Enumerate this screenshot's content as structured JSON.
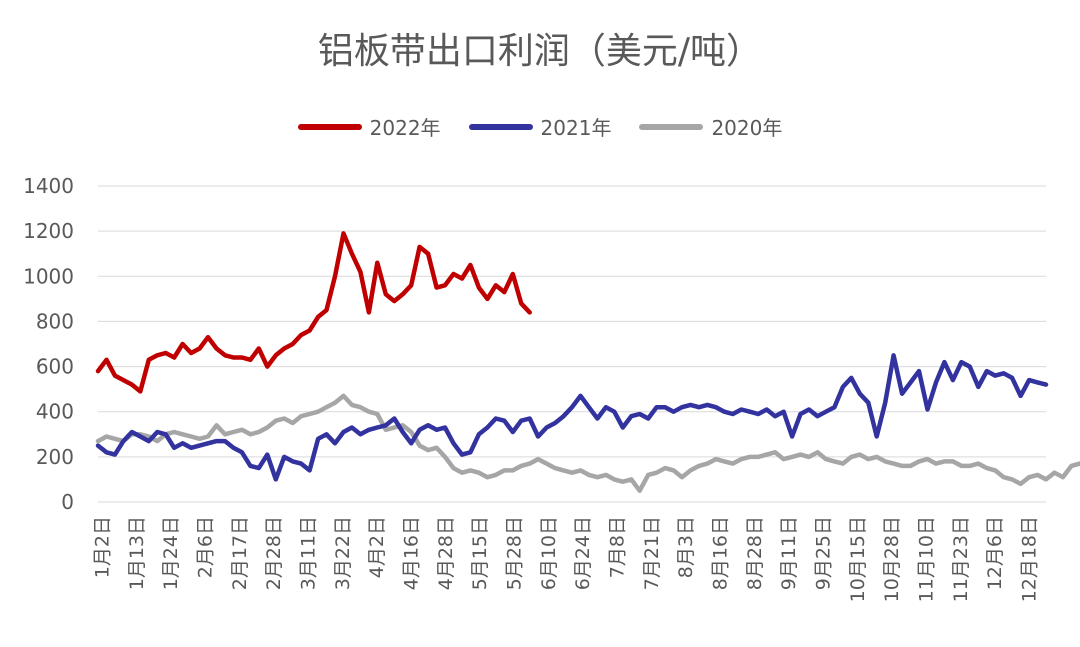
{
  "chart_data": {
    "type": "line",
    "title": "铝板带出口利润（美元/吨）",
    "xlabel": "",
    "ylabel": "",
    "ylim": [
      0,
      1400
    ],
    "yticks": [
      0,
      200,
      400,
      600,
      800,
      1000,
      1200,
      1400
    ],
    "grid": true,
    "legend_position": "top",
    "x_tick_labels": [
      "1月2日",
      "1月13日",
      "1月24日",
      "2月6日",
      "2月17日",
      "2月28日",
      "3月11日",
      "3月22日",
      "4月2日",
      "4月16日",
      "4月28日",
      "5月15日",
      "5月28日",
      "6月10日",
      "6月24日",
      "7月8日",
      "7月21日",
      "8月3日",
      "8月16日",
      "8月28日",
      "9月11日",
      "9月25日",
      "10月15日",
      "10月28日",
      "11月10日",
      "11月23日",
      "12月6日",
      "12月18日"
    ],
    "series": [
      {
        "name": "2022年",
        "color": "#c00000",
        "values": [
          580,
          630,
          560,
          540,
          520,
          490,
          630,
          650,
          660,
          640,
          700,
          660,
          680,
          730,
          680,
          650,
          640,
          640,
          630,
          680,
          600,
          650,
          680,
          700,
          740,
          760,
          820,
          850,
          1000,
          1190,
          1100,
          1020,
          840,
          1060,
          920,
          890,
          920,
          960,
          1130,
          1100,
          950,
          960,
          1010,
          990,
          1050,
          950,
          900,
          960,
          930,
          1010,
          880,
          840
        ]
      },
      {
        "name": "2021年",
        "color": "#3333a0",
        "values": [
          250,
          220,
          210,
          270,
          310,
          290,
          270,
          310,
          300,
          240,
          260,
          240,
          250,
          260,
          270,
          270,
          240,
          220,
          160,
          150,
          210,
          100,
          200,
          180,
          170,
          140,
          280,
          300,
          260,
          310,
          330,
          300,
          320,
          330,
          340,
          370,
          310,
          260,
          320,
          340,
          320,
          330,
          260,
          210,
          220,
          300,
          330,
          370,
          360,
          310,
          360,
          370,
          290,
          330,
          350,
          380,
          420,
          470,
          420,
          370,
          420,
          400,
          330,
          380,
          390,
          370,
          420,
          420,
          400,
          420,
          430,
          420,
          430,
          420,
          400,
          390,
          410,
          400,
          390,
          410,
          380,
          400,
          290,
          390,
          410,
          380,
          400,
          420,
          510,
          550,
          480,
          440,
          290,
          440,
          650,
          480,
          530,
          580,
          410,
          530,
          620,
          540,
          620,
          600,
          510,
          580,
          560,
          570,
          550,
          470,
          540,
          530,
          520
        ]
      },
      {
        "name": "2020年",
        "color": "#a6a6a6",
        "values": [
          270,
          290,
          280,
          270,
          300,
          300,
          290,
          270,
          300,
          310,
          300,
          290,
          280,
          290,
          340,
          300,
          310,
          320,
          300,
          310,
          330,
          360,
          370,
          350,
          380,
          390,
          400,
          420,
          440,
          470,
          430,
          420,
          400,
          390,
          320,
          330,
          340,
          310,
          250,
          230,
          240,
          200,
          150,
          130,
          140,
          130,
          110,
          120,
          140,
          140,
          160,
          170,
          190,
          170,
          150,
          140,
          130,
          140,
          120,
          110,
          120,
          100,
          90,
          100,
          50,
          120,
          130,
          150,
          140,
          110,
          140,
          160,
          170,
          190,
          180,
          170,
          190,
          200,
          200,
          210,
          220,
          190,
          200,
          210,
          200,
          220,
          190,
          180,
          170,
          200,
          210,
          190,
          200,
          180,
          170,
          160,
          160,
          180,
          190,
          170,
          180,
          180,
          160,
          160,
          170,
          150,
          140,
          110,
          100,
          80,
          110,
          120,
          100,
          130,
          110,
          160,
          170,
          190
        ]
      }
    ]
  }
}
